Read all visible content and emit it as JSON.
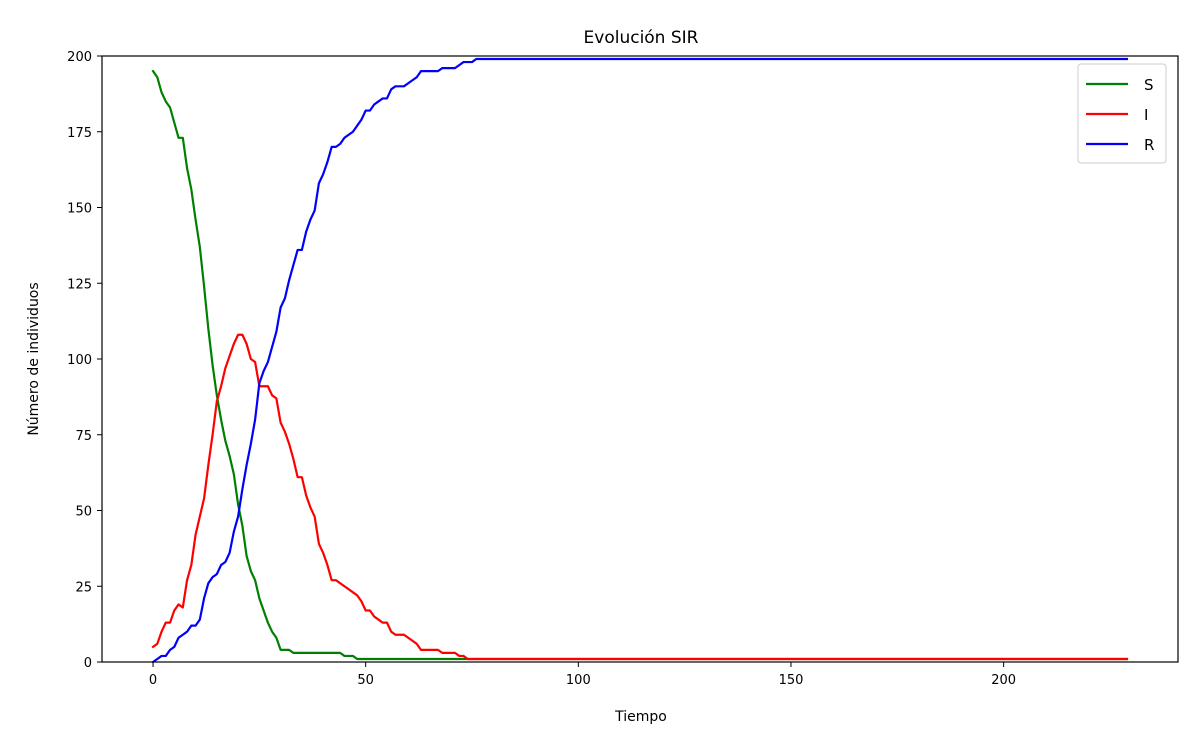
{
  "chart_data": {
    "type": "line",
    "title": "Evolución SIR",
    "xlabel": "Tiempo",
    "ylabel": "Número de individuos",
    "xlim": [
      -12,
      241
    ],
    "ylim": [
      0,
      200
    ],
    "x_ticks": [
      0,
      50,
      100,
      150,
      200
    ],
    "y_ticks": [
      0,
      25,
      50,
      75,
      100,
      125,
      150,
      175,
      200
    ],
    "grid": false,
    "legend_position": "top-right",
    "series": [
      {
        "name": "S",
        "color": "#008000",
        "points": [
          [
            0,
            195
          ],
          [
            1,
            193
          ],
          [
            2,
            188
          ],
          [
            3,
            185
          ],
          [
            4,
            183
          ],
          [
            5,
            178
          ],
          [
            6,
            173
          ],
          [
            7,
            173
          ],
          [
            8,
            163
          ],
          [
            9,
            156
          ],
          [
            10,
            146
          ],
          [
            11,
            137
          ],
          [
            12,
            124
          ],
          [
            13,
            110
          ],
          [
            14,
            98
          ],
          [
            15,
            88
          ],
          [
            16,
            80
          ],
          [
            17,
            73
          ],
          [
            18,
            68
          ],
          [
            19,
            62
          ],
          [
            20,
            52
          ],
          [
            21,
            45
          ],
          [
            22,
            35
          ],
          [
            23,
            30
          ],
          [
            24,
            27
          ],
          [
            25,
            21
          ],
          [
            26,
            17
          ],
          [
            27,
            13
          ],
          [
            28,
            10
          ],
          [
            29,
            8
          ],
          [
            30,
            4
          ],
          [
            32,
            4
          ],
          [
            33,
            3
          ],
          [
            44,
            3
          ],
          [
            45,
            2
          ],
          [
            47,
            2
          ],
          [
            48,
            1
          ],
          [
            229,
            1
          ]
        ]
      },
      {
        "name": "I",
        "color": "#ff0000",
        "points": [
          [
            0,
            5
          ],
          [
            1,
            6
          ],
          [
            2,
            10
          ],
          [
            3,
            13
          ],
          [
            4,
            13
          ],
          [
            5,
            17
          ],
          [
            6,
            19
          ],
          [
            7,
            18
          ],
          [
            8,
            27
          ],
          [
            9,
            32
          ],
          [
            10,
            42
          ],
          [
            11,
            48
          ],
          [
            12,
            54
          ],
          [
            13,
            65
          ],
          [
            14,
            75
          ],
          [
            15,
            86
          ],
          [
            16,
            91
          ],
          [
            17,
            97
          ],
          [
            18,
            101
          ],
          [
            19,
            105
          ],
          [
            20,
            108
          ],
          [
            21,
            108
          ],
          [
            22,
            105
          ],
          [
            23,
            100
          ],
          [
            24,
            99
          ],
          [
            25,
            91
          ],
          [
            27,
            91
          ],
          [
            28,
            88
          ],
          [
            29,
            87
          ],
          [
            30,
            79
          ],
          [
            31,
            76
          ],
          [
            32,
            72
          ],
          [
            33,
            67
          ],
          [
            34,
            61
          ],
          [
            35,
            61
          ],
          [
            36,
            55
          ],
          [
            37,
            51
          ],
          [
            38,
            48
          ],
          [
            39,
            39
          ],
          [
            40,
            36
          ],
          [
            41,
            32
          ],
          [
            42,
            27
          ],
          [
            43,
            27
          ],
          [
            44,
            26
          ],
          [
            45,
            25
          ],
          [
            46,
            24
          ],
          [
            47,
            23
          ],
          [
            48,
            22
          ],
          [
            49,
            20
          ],
          [
            50,
            17
          ],
          [
            51,
            17
          ],
          [
            52,
            15
          ],
          [
            53,
            14
          ],
          [
            54,
            13
          ],
          [
            55,
            13
          ],
          [
            56,
            10
          ],
          [
            57,
            9
          ],
          [
            59,
            9
          ],
          [
            60,
            8
          ],
          [
            61,
            7
          ],
          [
            62,
            6
          ],
          [
            63,
            4
          ],
          [
            67,
            4
          ],
          [
            68,
            3
          ],
          [
            71,
            3
          ],
          [
            72,
            2
          ],
          [
            73,
            2
          ],
          [
            74,
            1
          ],
          [
            229,
            1
          ]
        ]
      },
      {
        "name": "R",
        "color": "#0000ff",
        "points": [
          [
            0,
            0
          ],
          [
            1,
            1
          ],
          [
            2,
            2
          ],
          [
            3,
            2
          ],
          [
            4,
            4
          ],
          [
            5,
            5
          ],
          [
            6,
            8
          ],
          [
            7,
            9
          ],
          [
            8,
            10
          ],
          [
            9,
            12
          ],
          [
            10,
            12
          ],
          [
            11,
            14
          ],
          [
            12,
            21
          ],
          [
            13,
            26
          ],
          [
            14,
            28
          ],
          [
            15,
            29
          ],
          [
            16,
            32
          ],
          [
            17,
            33
          ],
          [
            18,
            36
          ],
          [
            19,
            43
          ],
          [
            20,
            48
          ],
          [
            21,
            57
          ],
          [
            22,
            65
          ],
          [
            23,
            72
          ],
          [
            24,
            80
          ],
          [
            25,
            92
          ],
          [
            26,
            96
          ],
          [
            27,
            99
          ],
          [
            28,
            104
          ],
          [
            29,
            109
          ],
          [
            30,
            117
          ],
          [
            31,
            120
          ],
          [
            32,
            126
          ],
          [
            33,
            131
          ],
          [
            34,
            136
          ],
          [
            35,
            136
          ],
          [
            36,
            142
          ],
          [
            37,
            146
          ],
          [
            38,
            149
          ],
          [
            39,
            158
          ],
          [
            40,
            161
          ],
          [
            41,
            165
          ],
          [
            42,
            170
          ],
          [
            43,
            170
          ],
          [
            44,
            171
          ],
          [
            45,
            173
          ],
          [
            46,
            174
          ],
          [
            47,
            175
          ],
          [
            48,
            177
          ],
          [
            49,
            179
          ],
          [
            50,
            182
          ],
          [
            51,
            182
          ],
          [
            52,
            184
          ],
          [
            53,
            185
          ],
          [
            54,
            186
          ],
          [
            55,
            186
          ],
          [
            56,
            189
          ],
          [
            57,
            190
          ],
          [
            59,
            190
          ],
          [
            60,
            191
          ],
          [
            61,
            192
          ],
          [
            62,
            193
          ],
          [
            63,
            195
          ],
          [
            67,
            195
          ],
          [
            68,
            196
          ],
          [
            71,
            196
          ],
          [
            72,
            197
          ],
          [
            73,
            198
          ],
          [
            75,
            198
          ],
          [
            76,
            199
          ],
          [
            229,
            199
          ]
        ]
      }
    ]
  }
}
